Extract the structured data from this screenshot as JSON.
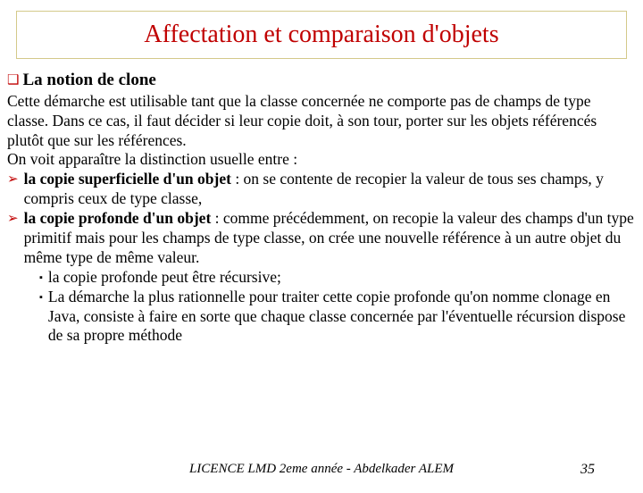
{
  "title": "Affectation et comparaison d'objets",
  "subheading": "La notion de clone",
  "intro": "Cette démarche est utilisable tant que la classe concernée ne comporte pas de champs de type classe. Dans ce cas, il faut décider si leur copie doit, à son tour, porter sur les objets référencés plutôt que sur les références.",
  "distinction_intro": "On voit apparaître la distinction usuelle entre :",
  "bullets": [
    {
      "lead": "la copie superficielle d'un objet",
      "rest": " : on se contente de recopier la valeur de tous ses champs, y compris ceux de type classe,"
    },
    {
      "lead": "la copie profonde d'un objet",
      "rest": " : comme précédemment, on recopie la valeur des champs d'un type primitif mais pour les champs de type classe, on crée une nouvelle référence à un autre objet du même type de même valeur."
    }
  ],
  "subbullets": [
    "la copie profonde peut être récursive;",
    "La démarche la plus rationnelle pour traiter cette copie profonde qu'on nomme clonage en Java, consiste à faire en sorte que chaque classe concernée par l'éventuelle récursion dispose de sa propre méthode"
  ],
  "footer": "LICENCE LMD 2eme année  -  Abdelkader ALEM",
  "page_number": "35",
  "colors": {
    "accent": "#c00000",
    "title_border": "#d4c98a",
    "text": "#000000",
    "background": "#ffffff"
  },
  "typography": {
    "title_fontsize": 28,
    "subhead_fontsize": 19,
    "body_fontsize": 17.5,
    "footer_fontsize": 15,
    "font_family": "Times New Roman"
  },
  "glyphs": {
    "square_hollow": "❑",
    "arrow": "➢",
    "square_small": "▪"
  }
}
